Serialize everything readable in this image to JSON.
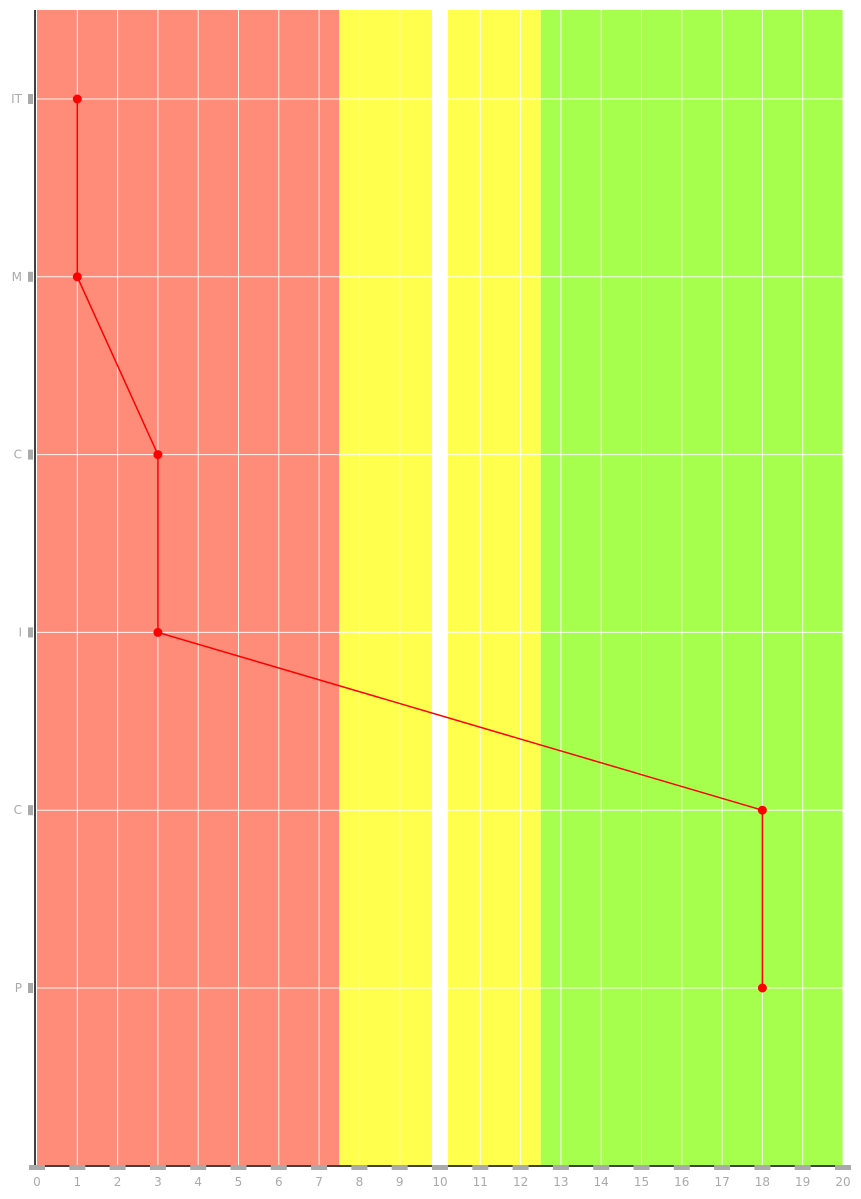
{
  "chart_data": {
    "type": "line",
    "title": "",
    "xlabel": "",
    "ylabel": "",
    "xlim": [
      0,
      20
    ],
    "x_ticks": [
      0,
      1,
      2,
      3,
      4,
      5,
      6,
      7,
      8,
      9,
      10,
      11,
      12,
      13,
      14,
      15,
      16,
      17,
      18,
      19,
      20
    ],
    "categories": [
      "IT",
      "M",
      "C",
      "I",
      "C",
      "P"
    ],
    "series": [
      {
        "values": [
          1,
          1,
          3,
          3,
          18,
          18
        ],
        "color": "#ff0000"
      }
    ],
    "bands": [
      {
        "from": 0,
        "to": 7.5,
        "color": "#ff8c78"
      },
      {
        "from": 7.5,
        "to": 9.8,
        "color": "#ffff4d"
      },
      {
        "from": 10.2,
        "to": 12.5,
        "color": "#ffff4d"
      },
      {
        "from": 12.5,
        "to": 20,
        "color": "#a6ff4d"
      }
    ],
    "grid": true,
    "legend": "none"
  }
}
